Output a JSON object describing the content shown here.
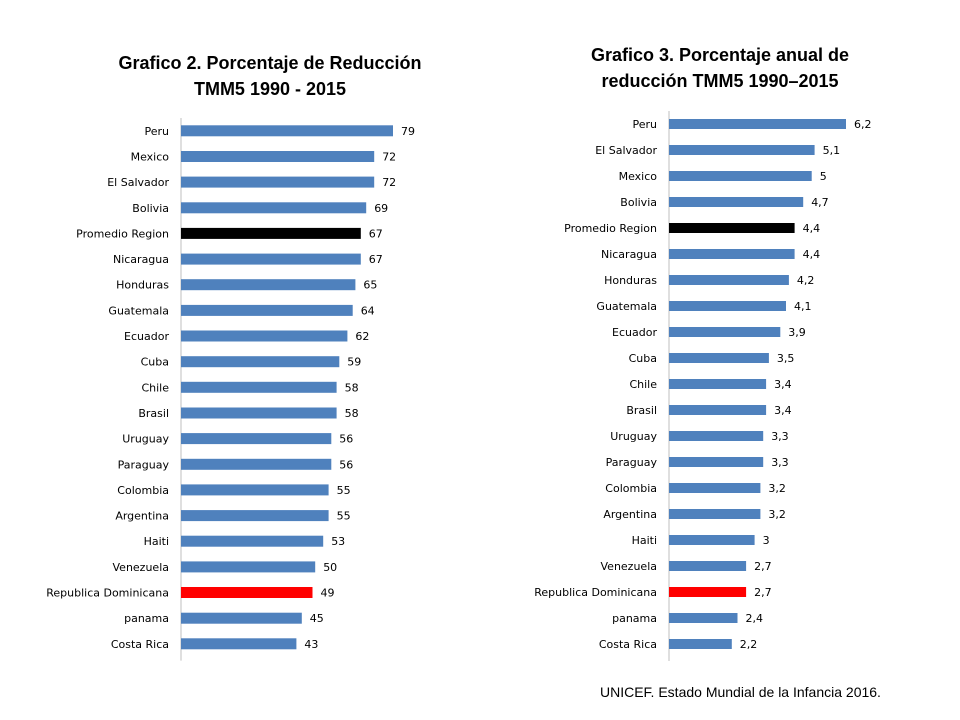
{
  "colors": {
    "default": "#4F81BD",
    "region": "#000000",
    "dominicana": "#FF0000"
  },
  "source": "UNICEF. Estado Mundial de la Infancia 2016.",
  "chart_data": [
    {
      "type": "bar",
      "orientation": "horizontal",
      "title_line1": "Grafico 2. Porcentaje de Reducción",
      "title_line2": "TMM5 1990 - 2015",
      "xlim": [
        0,
        100
      ],
      "categories": [
        "Peru",
        "Mexico",
        "El Salvador",
        "Bolivia",
        "Promedio Region",
        "Nicaragua",
        "Honduras",
        "Guatemala",
        "Ecuador",
        "Cuba",
        "Chile",
        "Brasil",
        "Uruguay",
        "Paraguay",
        "Colombia",
        "Argentina",
        "Haiti",
        "Venezuela",
        "Republica Dominicana",
        "panama",
        "Costa Rica"
      ],
      "values": [
        79,
        72,
        72,
        69,
        67,
        67,
        65,
        64,
        62,
        59,
        58,
        58,
        56,
        56,
        55,
        55,
        53,
        50,
        49,
        45,
        43
      ],
      "labels": [
        "79",
        "72",
        "72",
        "69",
        "67",
        "67",
        "65",
        "64",
        "62",
        "59",
        "58",
        "58",
        "56",
        "56",
        "55",
        "55",
        "53",
        "50",
        "49",
        "45",
        "43"
      ],
      "highlight": {
        "Promedio Region": "region",
        "Republica Dominicana": "dominicana"
      }
    },
    {
      "type": "bar",
      "orientation": "horizontal",
      "title_line1": "Grafico 3. Porcentaje anual de",
      "title_line2": "reducción TMM5 1990–2015",
      "xlim": [
        0,
        8
      ],
      "categories": [
        "Peru",
        "El Salvador",
        "Mexico",
        "Bolivia",
        "Promedio Region",
        "Nicaragua",
        "Honduras",
        "Guatemala",
        "Ecuador",
        "Cuba",
        "Chile",
        "Brasil",
        "Uruguay",
        "Paraguay",
        "Colombia",
        "Argentina",
        "Haiti",
        "Venezuela",
        "Republica Dominicana",
        "panama",
        "Costa Rica"
      ],
      "values": [
        6.2,
        5.1,
        5,
        4.7,
        4.4,
        4.4,
        4.2,
        4.1,
        3.9,
        3.5,
        3.4,
        3.4,
        3.3,
        3.3,
        3.2,
        3.2,
        3,
        2.7,
        2.7,
        2.4,
        2.2
      ],
      "labels": [
        "6,2",
        "5,1",
        "5",
        "4,7",
        "4,4",
        "4,4",
        "4,2",
        "4,1",
        "3,9",
        "3,5",
        "3,4",
        "3,4",
        "3,3",
        "3,3",
        "3,2",
        "3,2",
        "3",
        "2,7",
        "2,7",
        "2,4",
        "2,2"
      ],
      "highlight": {
        "Promedio Region": "region",
        "Republica Dominicana": "dominicana"
      }
    }
  ]
}
